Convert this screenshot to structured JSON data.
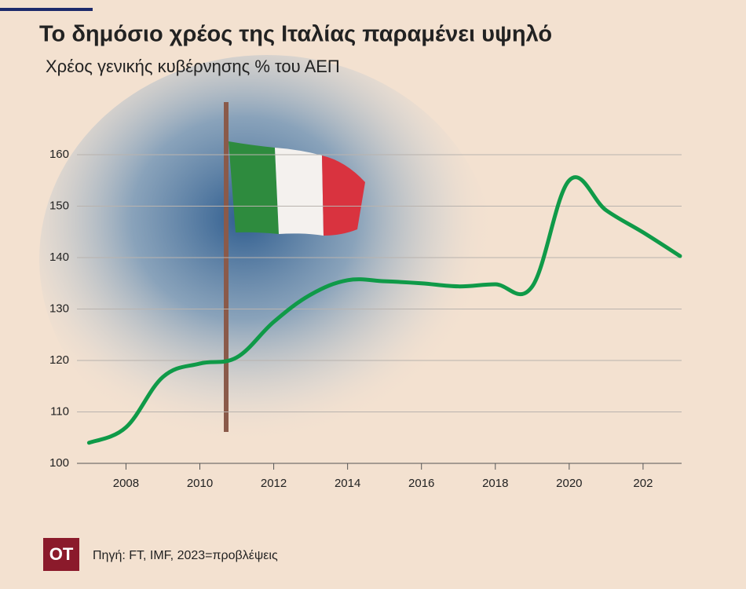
{
  "chart_data": {
    "type": "line",
    "title": "Το δημόσιο χρέος της Ιταλίας παραμένει υψηλό",
    "subtitle": "Χρέος γενικής κυβέρνησης % του ΑΕΠ",
    "source": "Πηγή: FT, IMF, 2023=προβλέψεις",
    "logo": "OT",
    "x": [
      2007,
      2008,
      2009,
      2010,
      2011,
      2012,
      2013,
      2014,
      2015,
      2016,
      2017,
      2018,
      2019,
      2020,
      2021,
      2022,
      2023
    ],
    "series": [
      {
        "name": "Χρέος",
        "color": "#0f9a48",
        "values": [
          104,
          107,
          116.8,
          119.4,
          120.6,
          127.5,
          132.8,
          135.6,
          135.4,
          135,
          134.4,
          134.8,
          134.4,
          155,
          149.2,
          144.9,
          140.3
        ]
      }
    ],
    "xlim": [
      2006.8,
      2023.15
    ],
    "xticks": [
      2008,
      2010,
      2012,
      2014,
      2016,
      2018,
      2020,
      {
        "value": 2022,
        "label": "202"
      }
    ],
    "ylim": [
      100,
      160
    ],
    "yticks": [
      100,
      110,
      120,
      130,
      140,
      150,
      160
    ],
    "grid": true
  }
}
